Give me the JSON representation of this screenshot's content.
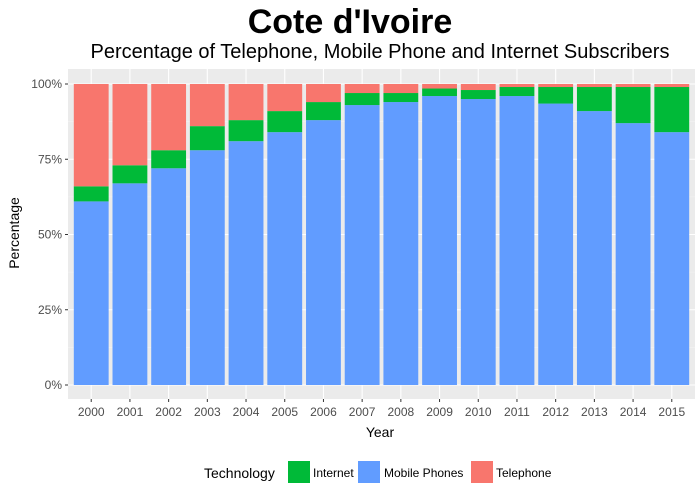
{
  "chart_data": {
    "type": "bar",
    "stacked": true,
    "title": "Cote d'Ivoire",
    "subtitle": "Percentage of Telephone, Mobile Phone and Internet Subscribers",
    "xlabel": "Year",
    "ylabel": "Percentage",
    "ylim": [
      0,
      100
    ],
    "y_ticks": [
      "0%",
      "25%",
      "50%",
      "75%",
      "100%"
    ],
    "categories": [
      "2000",
      "2001",
      "2002",
      "2003",
      "2004",
      "2005",
      "2006",
      "2007",
      "2008",
      "2009",
      "2010",
      "2011",
      "2012",
      "2013",
      "2014",
      "2015"
    ],
    "series": [
      {
        "name": "Mobile Phones",
        "color": "#619CFF",
        "values": [
          61,
          67,
          72,
          78,
          81,
          84,
          88,
          93,
          94,
          96,
          95,
          96,
          93.5,
          91,
          87,
          84
        ]
      },
      {
        "name": "Internet",
        "color": "#00BA38",
        "values": [
          5,
          6,
          6,
          8,
          7,
          7,
          6,
          4,
          3,
          2.5,
          3,
          3,
          5.5,
          8,
          12,
          15
        ]
      },
      {
        "name": "Telephone",
        "color": "#F8766D",
        "values": [
          34,
          27,
          22,
          14,
          12,
          9,
          6,
          3,
          3,
          1.5,
          2,
          1,
          1,
          1,
          1,
          1
        ]
      }
    ],
    "stack_order_bottom_to_top": [
      "Mobile Phones",
      "Internet",
      "Telephone"
    ],
    "legend": {
      "title": "Technology",
      "position": "bottom",
      "items": [
        {
          "label": "Internet",
          "color": "#00BA38"
        },
        {
          "label": "Mobile Phones",
          "color": "#619CFF"
        },
        {
          "label": "Telephone",
          "color": "#F8766D"
        }
      ]
    },
    "panel_background": "#EBEBEB",
    "grid": true
  }
}
